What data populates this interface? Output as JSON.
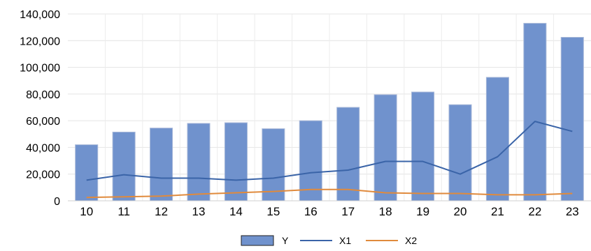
{
  "chart_data": {
    "type": "bar",
    "categories": [
      "10",
      "11",
      "12",
      "13",
      "14",
      "15",
      "16",
      "17",
      "18",
      "19",
      "20",
      "21",
      "22",
      "23"
    ],
    "series": [
      {
        "name": "Y",
        "type": "bar",
        "color": "#7092cd",
        "values": [
          42000,
          51500,
          54500,
          58000,
          58500,
          54000,
          60000,
          70000,
          79500,
          81500,
          72000,
          92500,
          133000,
          122500
        ]
      },
      {
        "name": "X1",
        "type": "line",
        "color": "#3a64a8",
        "values": [
          15500,
          19500,
          17000,
          17000,
          15500,
          17000,
          21000,
          23000,
          29500,
          29500,
          20000,
          33000,
          59500,
          52000
        ]
      },
      {
        "name": "X2",
        "type": "line",
        "color": "#e08a3c",
        "values": [
          2500,
          3000,
          3500,
          5000,
          6000,
          7000,
          8500,
          8500,
          6000,
          5500,
          5500,
          4500,
          4500,
          5500
        ]
      }
    ],
    "ylim": [
      0,
      140000
    ],
    "yticks": [
      "0",
      "20,000",
      "40,000",
      "60,000",
      "80,000",
      "100,000",
      "120,000",
      "140,000"
    ],
    "ytick_values": [
      0,
      20000,
      40000,
      60000,
      80000,
      100000,
      120000,
      140000
    ],
    "grid": true,
    "legend_position": "bottom"
  }
}
